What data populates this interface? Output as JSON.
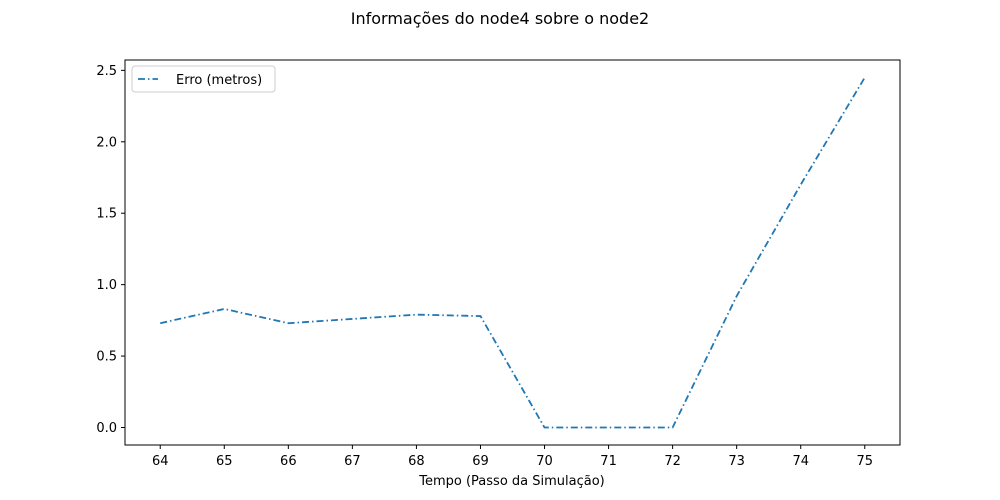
{
  "chart_data": {
    "type": "line",
    "title": "Informações do node4 sobre o node2",
    "xlabel": "Tempo (Passo da Simulação)",
    "ylabel": "",
    "x": [
      64,
      65,
      66,
      67,
      68,
      69,
      70,
      71,
      72,
      73,
      74,
      75
    ],
    "xlim": [
      63.45,
      75.55
    ],
    "ylim": [
      -0.1225,
      2.5725
    ],
    "xticks": [
      "64",
      "65",
      "66",
      "67",
      "68",
      "69",
      "70",
      "71",
      "72",
      "73",
      "74",
      "75"
    ],
    "yticks": [
      "0.0",
      "0.5",
      "1.0",
      "1.5",
      "2.0",
      "2.5"
    ],
    "series": [
      {
        "name": "Erro (metros)",
        "color": "#1f77b4",
        "linestyle": "dash-dot",
        "values": [
          0.73,
          0.83,
          0.73,
          0.76,
          0.79,
          0.78,
          0.0,
          0.0,
          0.0,
          0.92,
          1.7,
          2.45
        ]
      }
    ],
    "grid": false,
    "legend_position": "upper-left"
  }
}
